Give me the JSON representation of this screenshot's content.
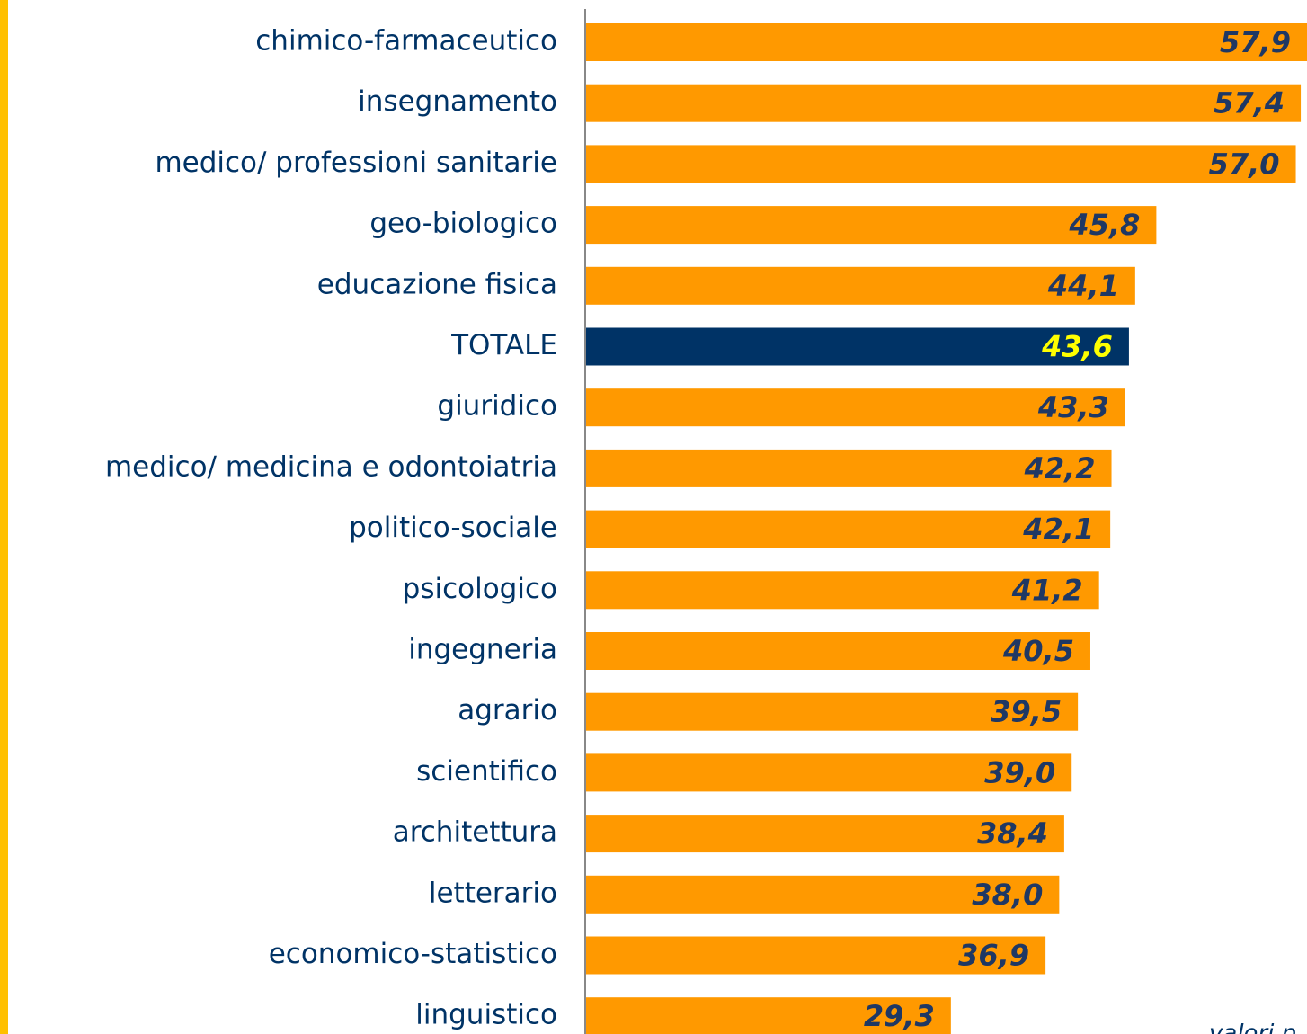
{
  "chart_data": {
    "type": "barh",
    "categories": [
      "chimico-farmaceutico",
      "insegnamento",
      "medico/ professioni sanitarie",
      "geo-biologico",
      "educazione fisica",
      "TOTALE",
      "giuridico",
      "medico/ medicina e odontoiatria",
      "politico-sociale",
      "psicologico",
      "ingegneria",
      "agrario",
      "scientifico",
      "architettura",
      "letterario",
      "economico-statistico",
      "linguistico"
    ],
    "values": [
      57.9,
      57.4,
      57.0,
      45.8,
      44.1,
      43.6,
      43.3,
      42.2,
      42.1,
      41.2,
      40.5,
      39.5,
      39.0,
      38.4,
      38.0,
      36.9,
      29.3
    ],
    "value_labels": [
      "57,9",
      "57,4",
      "57,0",
      "45,8",
      "44,1",
      "43,6",
      "43,3",
      "42,2",
      "42,1",
      "41,2",
      "40,5",
      "39,5",
      "39,0",
      "38,4",
      "38,0",
      "36,9",
      "29,3"
    ],
    "colors": [
      "#ff9900",
      "#ff9900",
      "#ff9900",
      "#ff9900",
      "#ff9900",
      "#003366",
      "#ff9900",
      "#ff9900",
      "#ff9900",
      "#ff9900",
      "#ff9900",
      "#ff9900",
      "#ff9900",
      "#ff9900",
      "#ff9900",
      "#ff9900",
      "#ff9900"
    ],
    "label_colors": [
      "#1f3864",
      "#1f3864",
      "#1f3864",
      "#1f3864",
      "#1f3864",
      "#ffff00",
      "#1f3864",
      "#1f3864",
      "#1f3864",
      "#1f3864",
      "#1f3864",
      "#1f3864",
      "#1f3864",
      "#1f3864",
      "#1f3864",
      "#1f3864",
      "#1f3864"
    ],
    "xlim": [
      0,
      57.9
    ],
    "note": "valori p"
  }
}
